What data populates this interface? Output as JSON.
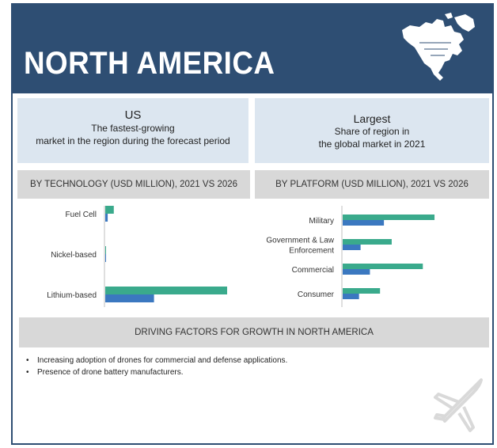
{
  "header": {
    "title": "NORTH AMERICA",
    "map_icon": "north-america-map-icon"
  },
  "highlights": {
    "left": {
      "headline": "US",
      "line1": "The fastest-growing",
      "line2": "market in the region during the forecast period"
    },
    "right": {
      "headline": "Largest",
      "line1": "Share of region in",
      "line2": "the global market in 2021"
    }
  },
  "chart_data": [
    {
      "type": "bar",
      "orientation": "horizontal",
      "title": "BY TECHNOLOGY (USD MILLION), 2021 VS 2026",
      "categories": [
        "Fuel Cell",
        "Nickel-based",
        "Lithium-based"
      ],
      "series": [
        {
          "name": "2026",
          "color": "#3aaa8c",
          "values": [
            7,
            0.5,
            100
          ]
        },
        {
          "name": "2021",
          "color": "#3b78c0",
          "values": [
            2,
            0.3,
            40
          ]
        }
      ],
      "xlim": [
        0,
        100
      ],
      "grid": false
    },
    {
      "type": "bar",
      "orientation": "horizontal",
      "title": "BY PLATFORM (USD MILLION), 2021 VS 2026",
      "categories": [
        "Military",
        "Government & Law Enforcement",
        "Commercial",
        "Consumer"
      ],
      "series": [
        {
          "name": "2026",
          "color": "#3aaa8c",
          "values": [
            118,
            63,
            103,
            48
          ]
        },
        {
          "name": "2021",
          "color": "#3b78c0",
          "values": [
            53,
            23,
            35,
            21
          ]
        }
      ],
      "xlim": [
        0,
        120
      ],
      "grid": false
    }
  ],
  "drivers": {
    "title": "DRIVING FACTORS FOR GROWTH IN NORTH AMERICA",
    "items": [
      "Increasing adoption of drones for commercial and defense applications.",
      "Presence of drone battery manufacturers."
    ],
    "bullet": "•"
  },
  "footer_icon": "airplane-icon"
}
